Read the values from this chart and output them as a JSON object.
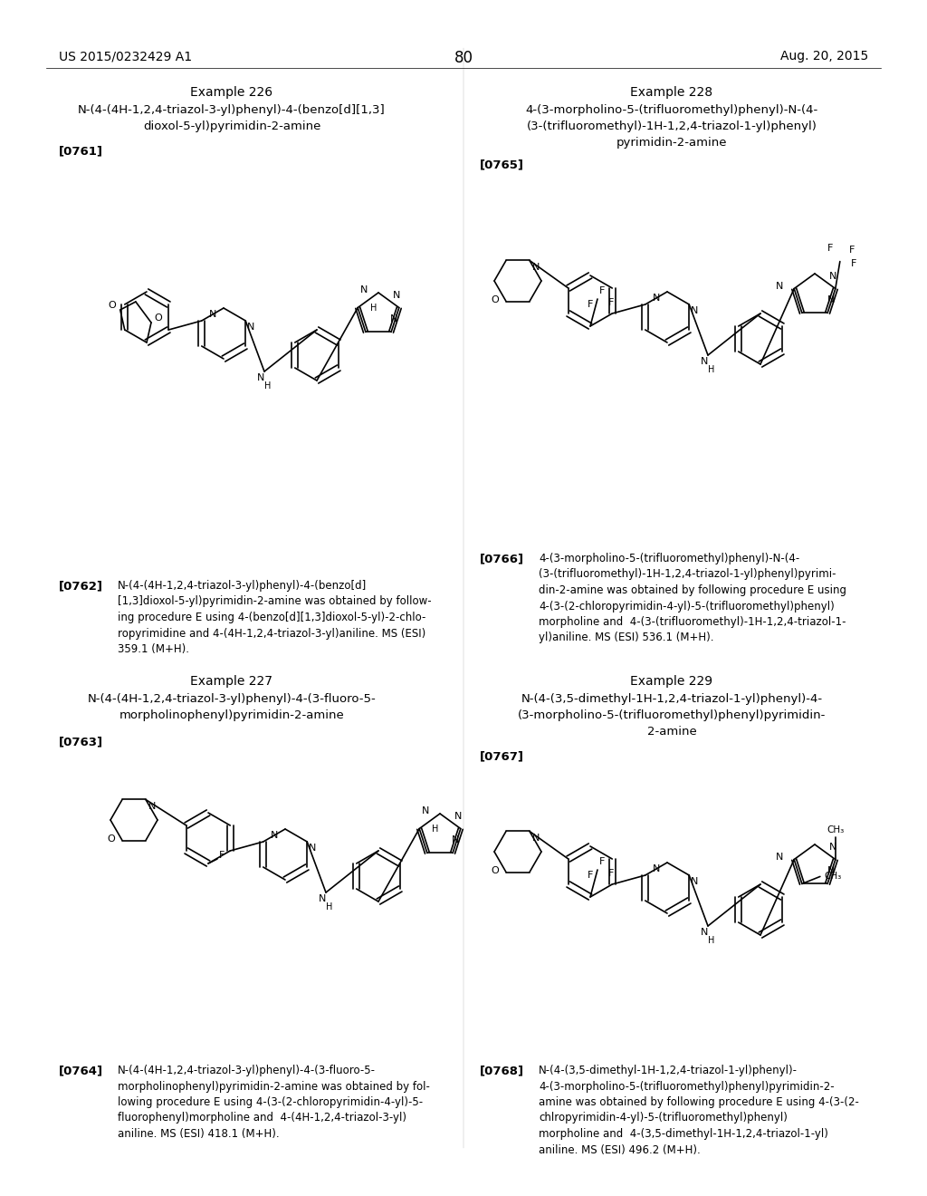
{
  "background_color": "#ffffff",
  "page_number": "80",
  "header_left": "US 2015/0232429 A1",
  "header_right": "Aug. 20, 2015",
  "examples": {
    "226": {
      "title": "Example 226",
      "compound_name": "N-(4-(4H-1,2,4-triazol-3-yl)phenyl)-4-(benzo[d][1,3]\ndioxol-5-yl)pyrimidin-2-amine",
      "ref": "[0761]",
      "para_ref": "[0762]",
      "paragraph": "N-(4-(4H-1,2,4-triazol-3-yl)phenyl)-4-(benzo[d]\n[1,3]dioxol-5-yl)pyrimidin-2-amine was obtained by follow-\ning procedure E using 4-(benzo[d][1,3]dioxol-5-yl)-2-chlo-\nropyrimidine and 4-(4H-1,2,4-triazol-3-yl)aniline. MS (ESI)\n359.1 (M+H).",
      "col": "left",
      "row": "top"
    },
    "227": {
      "title": "Example 227",
      "compound_name": "N-(4-(4H-1,2,4-triazol-3-yl)phenyl)-4-(3-fluoro-5-\nmorpholinophenyl)pyrimidin-2-amine",
      "ref": "[0763]",
      "para_ref": "[0764]",
      "paragraph": "N-(4-(4H-1,2,4-triazol-3-yl)phenyl)-4-(3-fluoro-5-\nmorpholinophenyl)pyrimidin-2-amine was obtained by fol-\nlowing procedure E using 4-(3-(2-chloropyrimidin-4-yl)-5-\nfluorophenyl)morpholine and  4-(4H-1,2,4-triazol-3-yl)\naniline. MS (ESI) 418.1 (M+H).",
      "col": "left",
      "row": "bottom"
    },
    "228": {
      "title": "Example 228",
      "compound_name": "4-(3-morpholino-5-(trifluoromethyl)phenyl)-N-(4-\n(3-(trifluoromethyl)-1H-1,2,4-triazol-1-yl)phenyl)\npyrimidin-2-amine",
      "ref": "[0765]",
      "para_ref": "[0766]",
      "paragraph": "4-(3-morpholino-5-(trifluoromethyl)phenyl)-N-(4-\n(3-(trifluoromethyl)-1H-1,2,4-triazol-1-yl)phenyl)pyrimi-\ndin-2-amine was obtained by following procedure E using\n4-(3-(2-chloropyrimidin-4-yl)-5-(trifluoromethyl)phenyl)\nmorpholine and  4-(3-(trifluoromethyl)-1H-1,2,4-triazol-1-\nyl)aniline. MS (ESI) 536.1 (M+H).",
      "col": "right",
      "row": "top"
    },
    "229": {
      "title": "Example 229",
      "compound_name": "N-(4-(3,5-dimethyl-1H-1,2,4-triazol-1-yl)phenyl)-4-\n(3-morpholino-5-(trifluoromethyl)phenyl)pyrimidin-\n2-amine",
      "ref": "[0767]",
      "para_ref": "[0768]",
      "paragraph": "N-(4-(3,5-dimethyl-1H-1,2,4-triazol-1-yl)phenyl)-\n4-(3-morpholino-5-(trifluoromethyl)phenyl)pyrimidin-2-\namine was obtained by following procedure E using 4-(3-(2-\nchlropyrimidin-4-yl)-5-(trifluoromethyl)phenyl)\nmorpholine and  4-(3,5-dimethyl-1H-1,2,4-triazol-1-yl)\naniline. MS (ESI) 496.2 (M+H).",
      "col": "right",
      "row": "bottom"
    }
  },
  "font_sizes": {
    "header": 10,
    "page_number": 12,
    "example_title": 10,
    "compound_name": 9.5,
    "ref": 9.5,
    "paragraph": 8.5
  }
}
